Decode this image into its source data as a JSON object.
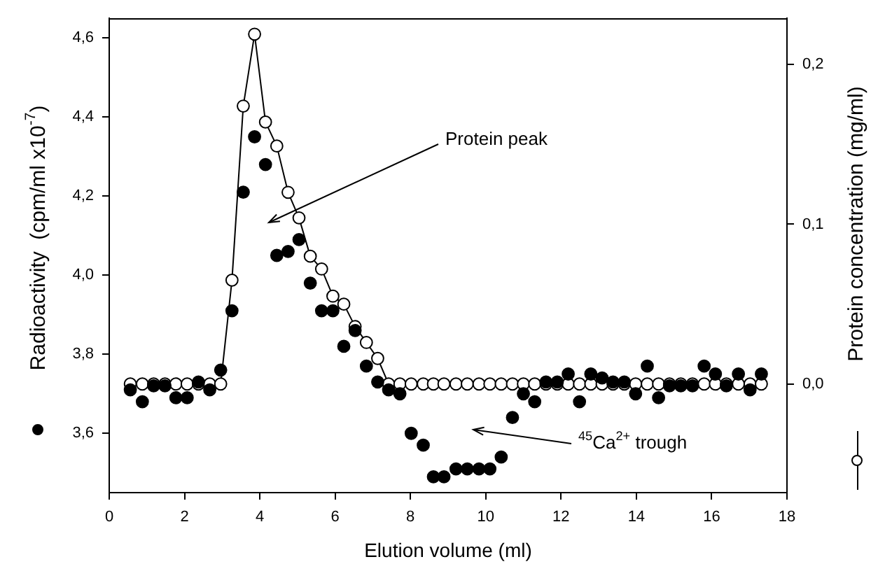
{
  "chart_data": {
    "type": "scatter",
    "xlabel": "Elution volume (ml)",
    "ylabel": "Radioactivity  (cpm/ml x10$^{-7}$)",
    "y2label": "Protein concentration (mg/ml)",
    "x": [
      0.56,
      0.88,
      1.18,
      1.48,
      1.77,
      2.07,
      2.37,
      2.67,
      2.96,
      3.26,
      3.56,
      3.86,
      4.15,
      4.45,
      4.75,
      5.04,
      5.34,
      5.64,
      5.94,
      6.23,
      6.53,
      6.83,
      7.13,
      7.42,
      7.72,
      8.02,
      8.34,
      8.61,
      8.89,
      9.21,
      9.51,
      9.82,
      10.11,
      10.41,
      10.71,
      11.0,
      11.3,
      11.6,
      11.9,
      12.19,
      12.49,
      12.79,
      13.09,
      13.38,
      13.68,
      13.98,
      14.29,
      14.59,
      14.88,
      15.18,
      15.49,
      15.8,
      16.1,
      16.39,
      16.71,
      17.02,
      17.32
    ],
    "series": [
      {
        "type": "scatter",
        "color": "#000000",
        "marker": "circle",
        "values": [
          3.71,
          3.68,
          3.72,
          3.72,
          3.69,
          3.69,
          3.73,
          3.71,
          3.76,
          3.91,
          4.21,
          4.35,
          4.28,
          4.05,
          4.06,
          4.09,
          3.98,
          3.91,
          3.91,
          3.82,
          3.86,
          3.77,
          3.73,
          3.71,
          3.7,
          3.6,
          3.57,
          3.49,
          3.49,
          3.51,
          3.51,
          3.51,
          3.51,
          3.54,
          3.64,
          3.7,
          3.68,
          3.73,
          3.73,
          3.75,
          3.68,
          3.75,
          3.74,
          3.73,
          3.73,
          3.7,
          3.77,
          3.69,
          3.72,
          3.72,
          3.72,
          3.77,
          3.75,
          3.72,
          3.75,
          3.71,
          3.75
        ]
      },
      {
        "type": "line",
        "axis": "y2",
        "color": "#000000",
        "marker": "circle",
        "values": [
          0,
          0,
          0,
          0,
          0,
          0,
          0,
          0,
          0,
          0.065,
          0.174,
          0.219,
          0.164,
          0.149,
          0.12,
          0.104,
          0.08,
          0.072,
          0.055,
          0.05,
          0.036,
          0.026,
          0.016,
          0,
          0,
          0,
          0,
          0,
          0,
          0,
          0,
          0,
          0,
          0,
          0,
          0,
          0,
          0,
          0,
          0,
          0,
          0,
          0,
          0,
          0,
          0,
          0,
          0,
          0,
          0,
          0,
          0,
          0,
          0,
          0,
          0,
          0
        ]
      }
    ],
    "xlim": [
      0,
      18
    ],
    "xticks": [
      0,
      2,
      4,
      6,
      8,
      10,
      12,
      14,
      16,
      18
    ],
    "ylim": [
      3.45,
      4.65
    ],
    "yticks": [
      {
        "value": 3.6,
        "label": "3,6"
      },
      {
        "value": 3.8,
        "label": "3,8"
      },
      {
        "value": 4.0,
        "label": "4,0"
      },
      {
        "value": 4.2,
        "label": "4,2"
      },
      {
        "value": 4.4,
        "label": "4,4"
      },
      {
        "value": 4.6,
        "label": "4,6"
      }
    ],
    "y2lim": [
      -0.068,
      0.229
    ],
    "y2ticks": [
      {
        "value": 0,
        "label": "0,0"
      },
      {
        "value": 0.1,
        "label": "0,1"
      },
      {
        "value": 0.2,
        "label": "0,2"
      }
    ],
    "annotations": [
      "Protein peak",
      "$^{45}$Ca$^{2+}$ trough"
    ],
    "grid": false,
    "legend": false
  }
}
